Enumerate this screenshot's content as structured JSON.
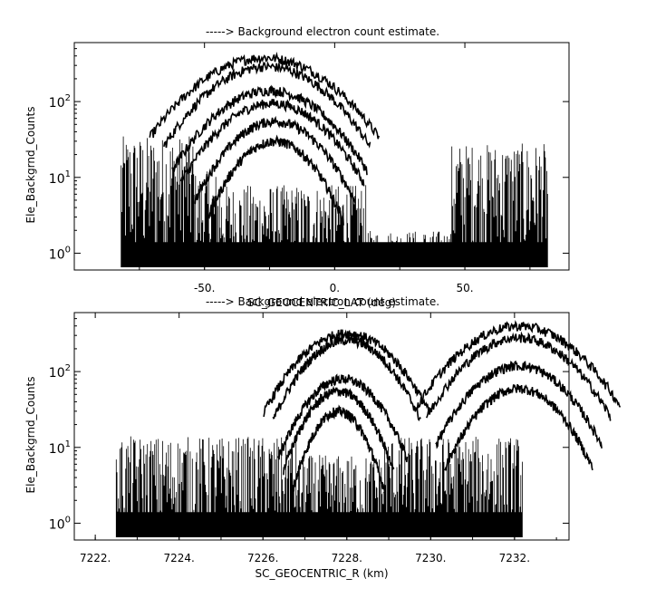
{
  "chart_data": [
    {
      "type": "line",
      "title": "-----> Background electron count estimate.",
      "xlabel": "SC_GEOCENTRIC_LAT (deg)",
      "ylabel": "Ele_Backgrnd_Counts",
      "xlim": [
        -100,
        90
      ],
      "ylim": [
        0.6,
        600
      ],
      "yscale": "log",
      "grid": false,
      "xticks": [
        {
          "value": -50,
          "label": "-50."
        },
        {
          "value": 0,
          "label": "0."
        },
        {
          "value": 50,
          "label": "50."
        }
      ],
      "yticks": [
        {
          "value": 1,
          "base": "10",
          "exp": "0"
        },
        {
          "value": 10,
          "base": "10",
          "exp": "1"
        },
        {
          "value": 100,
          "base": "10",
          "exp": "2"
        }
      ],
      "noise_regions": [
        {
          "x0": -82,
          "x1": -54,
          "peak": 35
        },
        {
          "x0": -54,
          "x1": -44,
          "peak": 12
        },
        {
          "x0": -44,
          "x1": 12,
          "peak": 8
        },
        {
          "x0": 12,
          "x1": 45,
          "peak": 2
        },
        {
          "x0": 45,
          "x1": 82,
          "peak": 28
        }
      ],
      "series": [
        {
          "center": -27,
          "width": 20,
          "peak": 380
        },
        {
          "center": -26,
          "width": 18,
          "peak": 290
        },
        {
          "center": -25,
          "width": 17,
          "peak": 140
        },
        {
          "center": -24,
          "width": 16,
          "peak": 95
        },
        {
          "center": -23,
          "width": 14,
          "peak": 55
        },
        {
          "center": -23,
          "width": 12,
          "peak": 30
        }
      ]
    },
    {
      "type": "line",
      "title": "-----> Background electron count estimate.",
      "xlabel": "SC_GEOCENTRIC_R (km)",
      "ylabel": "Ele_Backgrnd_Counts",
      "xlim": [
        7221.5,
        7233.3
      ],
      "ylim": [
        0.6,
        600
      ],
      "yscale": "log",
      "grid": false,
      "xticks": [
        {
          "value": 7222,
          "label": "7222."
        },
        {
          "value": 7224,
          "label": "7224."
        },
        {
          "value": 7226,
          "label": "7226."
        },
        {
          "value": 7228,
          "label": "7228."
        },
        {
          "value": 7230,
          "label": "7230."
        },
        {
          "value": 7232,
          "label": "7232."
        }
      ],
      "yticks": [
        {
          "value": 1,
          "base": "10",
          "exp": "0"
        },
        {
          "value": 10,
          "base": "10",
          "exp": "1"
        },
        {
          "value": 100,
          "base": "10",
          "exp": "2"
        }
      ],
      "noise_regions": [
        {
          "x0": 7222.5,
          "x1": 7226.8,
          "peak": 14
        },
        {
          "x0": 7226.8,
          "x1": 7228.9,
          "peak": 8
        },
        {
          "x0": 7228.9,
          "x1": 7232.2,
          "peak": 14
        }
      ],
      "series": [
        {
          "center": 7228.0,
          "width": 0.9,
          "peak": 320
        },
        {
          "center": 7228.0,
          "width": 0.8,
          "peak": 260
        },
        {
          "center": 7227.9,
          "width": 0.7,
          "peak": 80
        },
        {
          "center": 7227.8,
          "width": 0.6,
          "peak": 55
        },
        {
          "center": 7227.8,
          "width": 0.5,
          "peak": 30
        },
        {
          "center": 7232.1,
          "width": 1.1,
          "peak": 400
        },
        {
          "center": 7232.1,
          "width": 1.0,
          "peak": 280
        },
        {
          "center": 7232.1,
          "width": 0.9,
          "peak": 120
        },
        {
          "center": 7232.1,
          "width": 0.8,
          "peak": 60
        }
      ]
    }
  ]
}
